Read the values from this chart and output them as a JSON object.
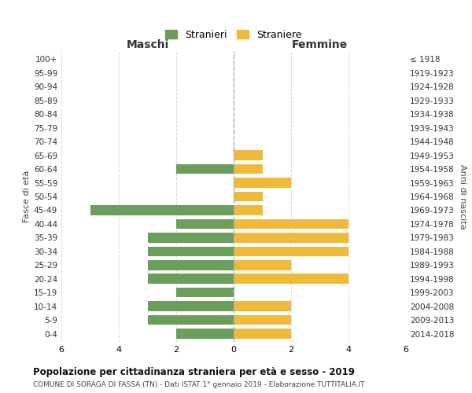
{
  "age_groups": [
    "0-4",
    "5-9",
    "10-14",
    "15-19",
    "20-24",
    "25-29",
    "30-34",
    "35-39",
    "40-44",
    "45-49",
    "50-54",
    "55-59",
    "60-64",
    "65-69",
    "70-74",
    "75-79",
    "80-84",
    "85-89",
    "90-94",
    "95-99",
    "100+"
  ],
  "birth_years": [
    "2014-2018",
    "2009-2013",
    "2004-2008",
    "1999-2003",
    "1994-1998",
    "1989-1993",
    "1984-1988",
    "1979-1983",
    "1974-1978",
    "1969-1973",
    "1964-1968",
    "1959-1963",
    "1954-1958",
    "1949-1953",
    "1944-1948",
    "1939-1943",
    "1934-1938",
    "1929-1933",
    "1924-1928",
    "1919-1923",
    "≤ 1918"
  ],
  "males": [
    2,
    3,
    3,
    2,
    3,
    3,
    3,
    3,
    2,
    5,
    0,
    0,
    2,
    0,
    0,
    0,
    0,
    0,
    0,
    0,
    0
  ],
  "females": [
    2,
    2,
    2,
    0,
    4,
    2,
    4,
    4,
    4,
    1,
    1,
    2,
    1,
    1,
    0,
    0,
    0,
    0,
    0,
    0,
    0
  ],
  "male_color": "#6a9e5a",
  "female_color": "#f0b93a",
  "title1": "Popolazione per cittadinanza straniera per età e sesso - 2019",
  "title2": "COMUNE DI SORAGA DI FASSA (TN) - Dati ISTAT 1° gennaio 2019 - Elaborazione TUTTITALIA.IT",
  "legend_male": "Stranieri",
  "legend_female": "Straniere",
  "header_left": "Maschi",
  "header_right": "Femmine",
  "ylabel_left": "Fasce di età",
  "ylabel_right": "Anni di nascita",
  "xlim": 6,
  "background_color": "#ffffff",
  "grid_color": "#d8d8d8"
}
